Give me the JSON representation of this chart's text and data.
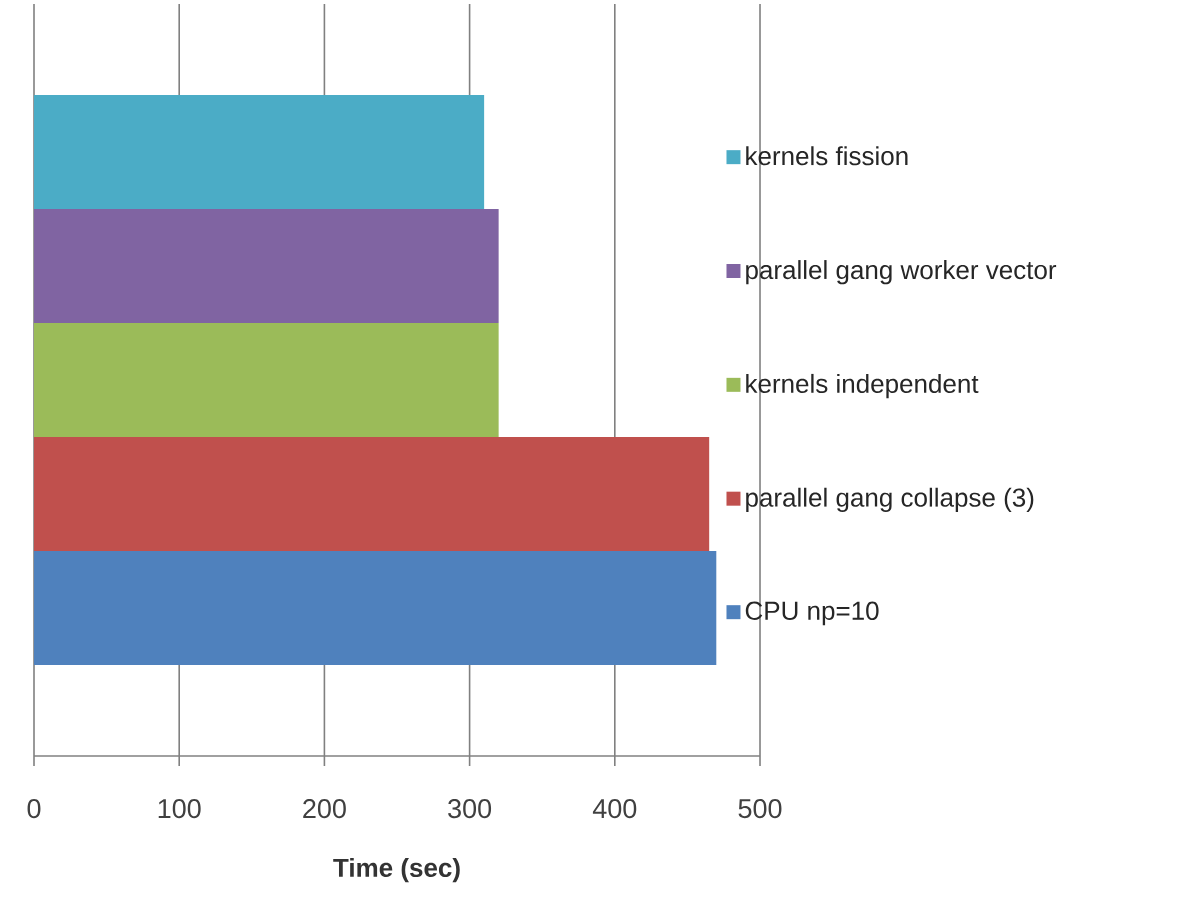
{
  "chart_data": {
    "type": "bar",
    "orientation": "horizontal",
    "xlabel": "Time (sec)",
    "categories": [
      null
    ],
    "series": [
      {
        "name": "CPU np=10",
        "color": "#4f81bd",
        "values": [
          470
        ]
      },
      {
        "name": "parallel gang collapse (3)",
        "color": "#c0504d",
        "values": [
          465
        ]
      },
      {
        "name": "kernels independent",
        "color": "#9bbb59",
        "values": [
          320
        ]
      },
      {
        "name": "parallel gang worker vector",
        "color": "#8064a2",
        "values": [
          320
        ]
      },
      {
        "name": "kernels fission",
        "color": "#4bacc6",
        "values": [
          310
        ]
      }
    ],
    "xlim": [
      0,
      500
    ],
    "xticks": [
      0,
      100,
      200,
      300,
      400,
      500
    ],
    "grid": "x",
    "legend": "right",
    "tick_labels": "x"
  }
}
